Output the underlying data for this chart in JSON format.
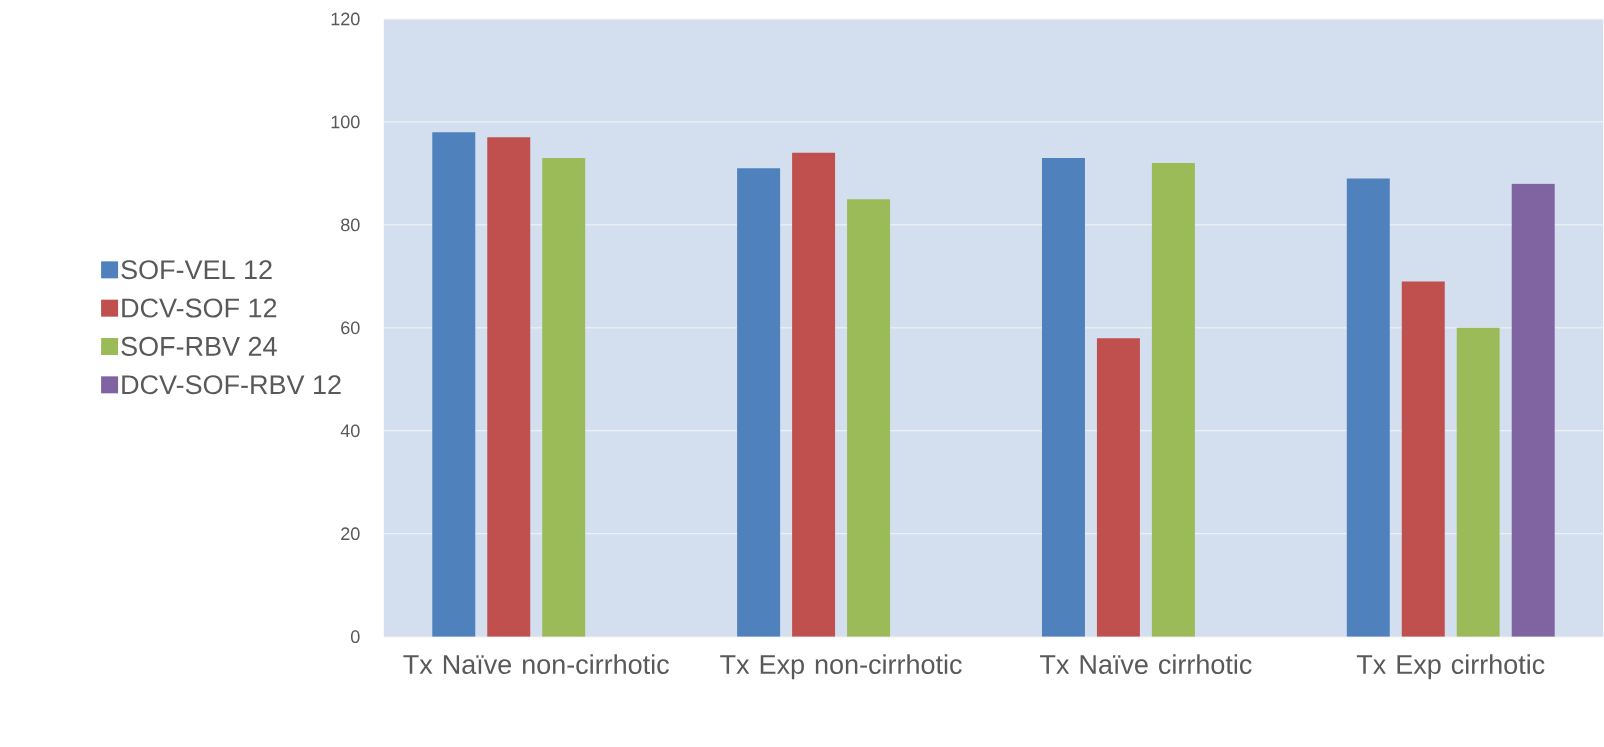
{
  "chart_data": {
    "type": "bar",
    "categories": [
      "Tx Naïve non-cirrhotic",
      "Tx Exp non-cirrhotic",
      "Tx Naïve cirrhotic",
      "Tx Exp cirrhotic"
    ],
    "series": [
      {
        "name": "SOF-VEL 12",
        "color": "#4f81bd",
        "values": [
          98,
          91,
          93,
          89
        ]
      },
      {
        "name": "DCV-SOF 12",
        "color": "#c0504d",
        "values": [
          97,
          94,
          58,
          69
        ]
      },
      {
        "name": "SOF-RBV 24",
        "color": "#9bbb59",
        "values": [
          93,
          85,
          92,
          60
        ]
      },
      {
        "name": "DCV-SOF-RBV 12",
        "color": "#8064a2",
        "values": [
          null,
          null,
          null,
          88
        ]
      }
    ],
    "ylim": [
      0,
      120
    ],
    "yticks": [
      0,
      20,
      40,
      60,
      80,
      100,
      120
    ],
    "grid": "y",
    "legend": "left"
  }
}
